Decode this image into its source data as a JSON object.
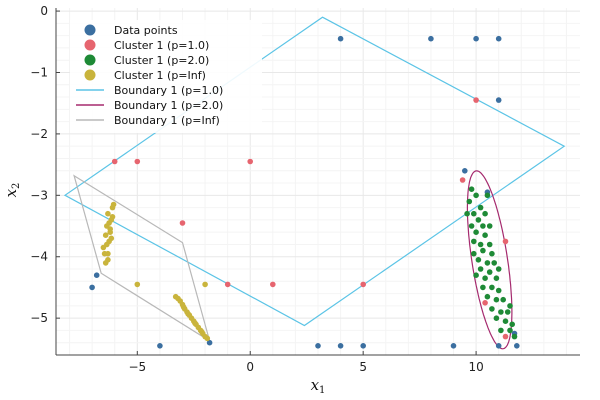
{
  "chart_data": {
    "type": "scatter",
    "xlabel": "x",
    "xlabel_sub": "1",
    "ylabel": "x",
    "ylabel_sub": "2",
    "xlim": [
      -8.6,
      14.6
    ],
    "ylim": [
      -5.6,
      0.05
    ],
    "xticks": [
      -5,
      0,
      5,
      10
    ],
    "xtick_labels": [
      "−5",
      "0",
      "5",
      "10"
    ],
    "yticks": [
      0,
      -1,
      -2,
      -3,
      -4,
      -5
    ],
    "ytick_labels": [
      "0",
      "−1",
      "−2",
      "−3",
      "−4",
      "−5"
    ],
    "grid": true,
    "legend_position": "top-left",
    "legend": [
      {
        "label": "Data points",
        "kind": "marker",
        "color": "#3b6fa0"
      },
      {
        "label": "Cluster 1 (p=1.0)",
        "kind": "marker",
        "color": "#e6656f"
      },
      {
        "label": "Cluster 1 (p=2.0)",
        "kind": "marker",
        "color": "#1e8a36"
      },
      {
        "label": "Cluster 1 (p=Inf)",
        "kind": "marker",
        "color": "#c9b43c"
      },
      {
        "label": "Boundary 1 (p=1.0)",
        "kind": "line",
        "color": "#5bc4e6"
      },
      {
        "label": "Boundary 1 (p=2.0)",
        "kind": "line",
        "color": "#a52a6e"
      },
      {
        "label": "Boundary 1 (p=Inf)",
        "kind": "line",
        "color": "#b8b8b8"
      }
    ],
    "series": [
      {
        "name": "Data points",
        "color": "#3b6fa0",
        "points": [
          [
            4.0,
            -0.45
          ],
          [
            8.0,
            -0.45
          ],
          [
            10.0,
            -0.45
          ],
          [
            11.0,
            -0.45
          ],
          [
            11.0,
            -1.45
          ],
          [
            -7.0,
            -4.5
          ],
          [
            -4.0,
            -5.45
          ],
          [
            3.0,
            -5.45
          ],
          [
            4.0,
            -5.45
          ],
          [
            5.0,
            -5.45
          ],
          [
            9.0,
            -5.45
          ],
          [
            11.0,
            -5.45
          ],
          [
            11.8,
            -5.45
          ],
          [
            -1.8,
            -5.4
          ],
          [
            -6.8,
            -4.3
          ],
          [
            9.5,
            -2.6
          ],
          [
            10.5,
            -2.95
          ],
          [
            11.7,
            -5.25
          ]
        ]
      },
      {
        "name": "Cluster 1 (p=1.0)",
        "color": "#e6656f",
        "points": [
          [
            10.0,
            -1.45
          ],
          [
            -6.0,
            -2.45
          ],
          [
            -5.0,
            -2.45
          ],
          [
            0.0,
            -2.45
          ],
          [
            -3.0,
            -3.45
          ],
          [
            -1.0,
            -4.45
          ],
          [
            1.0,
            -4.45
          ],
          [
            5.0,
            -4.45
          ],
          [
            11.3,
            -3.75
          ],
          [
            10.4,
            -4.75
          ],
          [
            11.3,
            -5.3
          ],
          [
            9.4,
            -2.75
          ]
        ]
      },
      {
        "name": "Cluster 1 (p=2.0)",
        "color": "#1e8a36",
        "points": [
          [
            9.8,
            -2.9
          ],
          [
            10.0,
            -3.0
          ],
          [
            9.7,
            -3.1
          ],
          [
            10.2,
            -3.2
          ],
          [
            9.9,
            -3.3
          ],
          [
            10.4,
            -3.3
          ],
          [
            10.1,
            -3.4
          ],
          [
            9.8,
            -3.5
          ],
          [
            10.3,
            -3.5
          ],
          [
            10.6,
            -3.5
          ],
          [
            10.0,
            -3.6
          ],
          [
            10.4,
            -3.65
          ],
          [
            9.9,
            -3.75
          ],
          [
            10.2,
            -3.8
          ],
          [
            10.6,
            -3.8
          ],
          [
            10.3,
            -3.9
          ],
          [
            9.9,
            -3.95
          ],
          [
            10.7,
            -3.95
          ],
          [
            10.1,
            -4.05
          ],
          [
            10.5,
            -4.1
          ],
          [
            10.8,
            -4.1
          ],
          [
            10.2,
            -4.2
          ],
          [
            10.6,
            -4.25
          ],
          [
            10.4,
            -4.35
          ],
          [
            10.9,
            -4.35
          ],
          [
            10.3,
            -4.5
          ],
          [
            10.7,
            -4.5
          ],
          [
            11.0,
            -4.55
          ],
          [
            10.5,
            -4.65
          ],
          [
            10.9,
            -4.7
          ],
          [
            11.2,
            -4.7
          ],
          [
            10.7,
            -4.85
          ],
          [
            11.1,
            -4.9
          ],
          [
            11.4,
            -4.9
          ],
          [
            10.9,
            -5.0
          ],
          [
            11.3,
            -5.05
          ],
          [
            11.6,
            -5.1
          ],
          [
            11.5,
            -5.2
          ],
          [
            11.1,
            -5.2
          ],
          [
            11.7,
            -5.3
          ],
          [
            10.5,
            -3.0
          ],
          [
            9.6,
            -3.3
          ],
          [
            11.0,
            -4.2
          ],
          [
            10.0,
            -4.3
          ],
          [
            11.5,
            -4.8
          ]
        ]
      },
      {
        "name": "Cluster 1 (p=Inf)",
        "color": "#c9b43c",
        "points": [
          [
            -6.4,
            -4.1
          ],
          [
            -6.3,
            -3.95
          ],
          [
            -6.5,
            -3.85
          ],
          [
            -6.25,
            -3.75
          ],
          [
            -6.4,
            -3.65
          ],
          [
            -6.2,
            -3.55
          ],
          [
            -6.35,
            -3.5
          ],
          [
            -6.15,
            -3.4
          ],
          [
            -6.3,
            -3.3
          ],
          [
            -6.1,
            -3.2
          ],
          [
            -6.05,
            -3.15
          ],
          [
            -6.2,
            -3.6
          ],
          [
            -6.45,
            -3.95
          ],
          [
            -6.3,
            -4.05
          ],
          [
            -6.15,
            -3.7
          ],
          [
            -6.35,
            -3.8
          ],
          [
            -6.25,
            -3.45
          ],
          [
            -6.1,
            -3.35
          ],
          [
            -3.3,
            -4.65
          ],
          [
            -3.1,
            -4.72
          ],
          [
            -3.0,
            -4.78
          ],
          [
            -2.9,
            -4.85
          ],
          [
            -2.8,
            -4.9
          ],
          [
            -2.7,
            -4.95
          ],
          [
            -2.6,
            -5.0
          ],
          [
            -2.5,
            -5.05
          ],
          [
            -2.4,
            -5.1
          ],
          [
            -2.3,
            -5.15
          ],
          [
            -2.2,
            -5.2
          ],
          [
            -2.1,
            -5.25
          ],
          [
            -2.0,
            -5.3
          ],
          [
            -1.9,
            -5.33
          ],
          [
            -3.2,
            -4.68
          ],
          [
            -2.95,
            -4.82
          ],
          [
            -2.75,
            -4.93
          ],
          [
            -2.45,
            -5.08
          ],
          [
            -2.15,
            -5.22
          ],
          [
            -5.0,
            -4.45
          ],
          [
            -2.0,
            -4.45
          ]
        ]
      }
    ],
    "boundaries": [
      {
        "name": "Boundary 1 (p=1.0)",
        "color": "#5bc4e6",
        "shape": "polygon",
        "points": [
          [
            3.2,
            -0.1
          ],
          [
            13.9,
            -2.2
          ],
          [
            2.4,
            -5.12
          ],
          [
            -8.2,
            -3.0
          ]
        ]
      },
      {
        "name": "Boundary 1 (p=2.0)",
        "color": "#a52a6e",
        "shape": "ellipse",
        "center": [
          10.6,
          -4.05
        ],
        "semi_major": 1.58,
        "semi_minor": 0.3,
        "angle_deg": -66
      },
      {
        "name": "Boundary 1 (p=Inf)",
        "color": "#b8b8b8",
        "shape": "polygon",
        "points": [
          [
            -7.8,
            -2.68
          ],
          [
            -3.0,
            -3.77
          ],
          [
            -1.8,
            -5.37
          ],
          [
            -6.6,
            -4.27
          ]
        ]
      }
    ]
  }
}
